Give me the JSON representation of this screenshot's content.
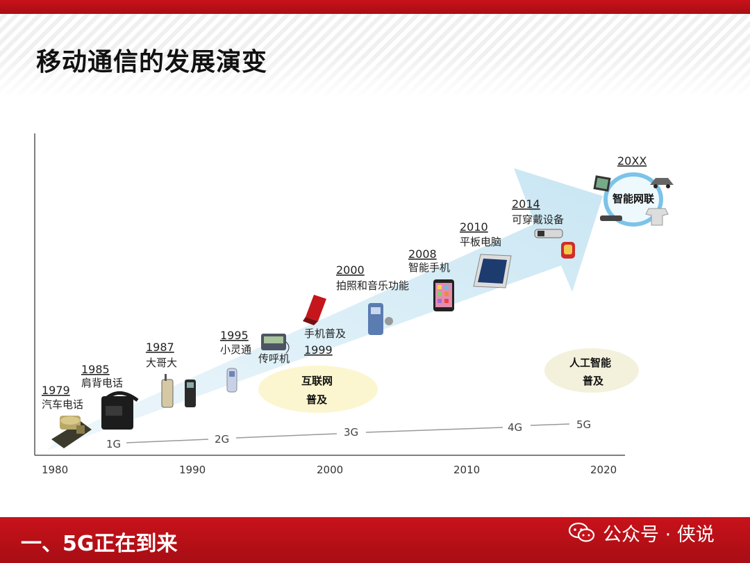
{
  "header": {
    "title": "移动通信的发展演变"
  },
  "timeline": {
    "axis_years": [
      "1980",
      "1990",
      "2000",
      "2010",
      "2020"
    ],
    "generations": [
      "1G",
      "2G",
      "3G",
      "4G",
      "5G"
    ],
    "milestones": [
      {
        "year": "1979",
        "label": "汽车电话"
      },
      {
        "year": "1985",
        "label": "肩背电话"
      },
      {
        "year": "1987",
        "label": "大哥大"
      },
      {
        "year": "1995",
        "label": "小灵通"
      },
      {
        "label": "传呼机"
      },
      {
        "year": "1999",
        "label": "手机普及"
      },
      {
        "year": "2000",
        "label": "拍照和音乐功能"
      },
      {
        "year": "2008",
        "label": "智能手机"
      },
      {
        "year": "2010",
        "label": "平板电脑"
      },
      {
        "year": "2014",
        "label": "可穿戴设备"
      },
      {
        "year": "20XX",
        "label": "智能网联"
      }
    ],
    "bubbles": [
      {
        "line1": "互联网",
        "line2": "普及"
      },
      {
        "line1": "人工智能",
        "line2": "普及"
      }
    ]
  },
  "footer": {
    "section": "一、5G正在到来",
    "watermark": "公众号 · 侠说",
    "watermark_icon": "wechat-icon"
  },
  "colors": {
    "brand_red": "#c8121a",
    "arrow_fill": "#d6ecf6",
    "bubble_fill": "#fbf6cf"
  }
}
